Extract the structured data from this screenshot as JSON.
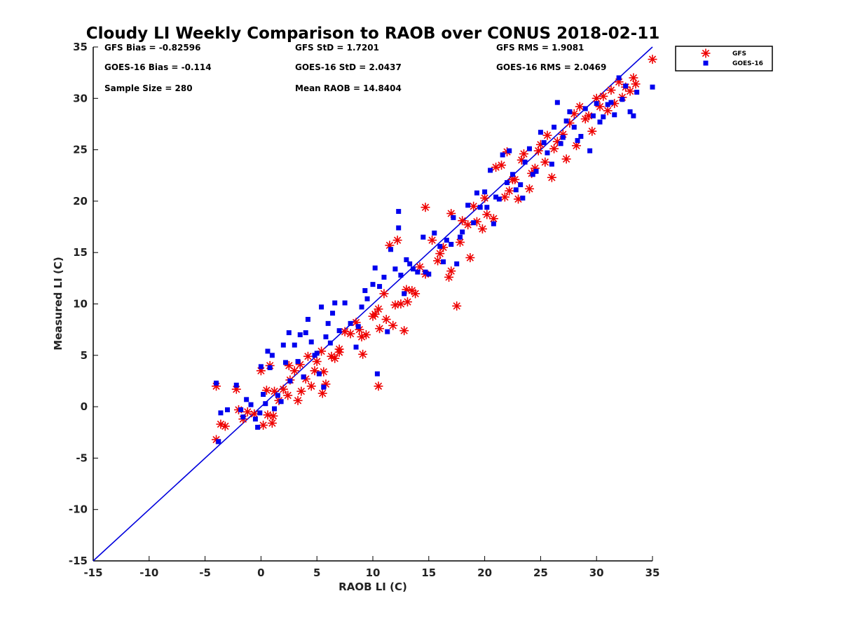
{
  "chart_data": {
    "type": "scatter",
    "title": "Cloudy LI Weekly Comparison to RAOB over CONUS 2018-02-11",
    "xlabel": "RAOB LI (C)",
    "ylabel": "Measured LI (C)",
    "xlim": [
      -15,
      35
    ],
    "ylim": [
      -15,
      35
    ],
    "x_ticks": [
      "-15",
      "-10",
      "-5",
      "0",
      "5",
      "10",
      "15",
      "20",
      "25",
      "30",
      "35"
    ],
    "y_ticks": [
      "-15",
      "-10",
      "-5",
      "0",
      "5",
      "10",
      "15",
      "20",
      "25",
      "30",
      "35"
    ],
    "grid": false,
    "legend_position": "top-right outside",
    "reference_line": {
      "from": [
        -15,
        -15
      ],
      "to": [
        35,
        35
      ],
      "color": "#0000dd"
    },
    "stats": [
      "GFS Bias = -0.82596",
      "GFS StD = 1.7201",
      "GFS RMS = 1.9081",
      "GOES-16 Bias = -0.114",
      "GOES-16 StD = 2.0437",
      "GOES-16 RMS = 2.0469",
      "Sample Size = 280",
      "Mean RAOB = 14.8404"
    ],
    "series": [
      {
        "name": "GFS",
        "marker": "asterisk",
        "color": "#ee0000",
        "points": [
          [
            -4.0,
            2.0
          ],
          [
            -4.0,
            -3.2
          ],
          [
            -3.6,
            -1.7
          ],
          [
            -3.2,
            -1.9
          ],
          [
            -2.2,
            1.7
          ],
          [
            -2.0,
            -0.3
          ],
          [
            -1.6,
            -1.2
          ],
          [
            -1.2,
            -0.5
          ],
          [
            -0.6,
            -0.7
          ],
          [
            0.0,
            3.5
          ],
          [
            0.2,
            -1.8
          ],
          [
            0.5,
            1.6
          ],
          [
            0.6,
            -0.8
          ],
          [
            0.8,
            4.0
          ],
          [
            1.0,
            -1.6
          ],
          [
            1.1,
            -0.9
          ],
          [
            1.2,
            1.5
          ],
          [
            1.6,
            0.6
          ],
          [
            2.0,
            1.7
          ],
          [
            2.4,
            1.1
          ],
          [
            2.5,
            4.0
          ],
          [
            2.6,
            2.6
          ],
          [
            3.0,
            3.5
          ],
          [
            3.3,
            0.6
          ],
          [
            3.5,
            4.1
          ],
          [
            3.6,
            1.5
          ],
          [
            4.0,
            2.7
          ],
          [
            4.2,
            4.9
          ],
          [
            4.5,
            2.0
          ],
          [
            4.8,
            3.5
          ],
          [
            5.0,
            4.4
          ],
          [
            5.4,
            5.4
          ],
          [
            5.5,
            1.3
          ],
          [
            5.6,
            3.4
          ],
          [
            5.8,
            2.2
          ],
          [
            6.3,
            4.9
          ],
          [
            6.6,
            4.7
          ],
          [
            7.0,
            5.6
          ],
          [
            7.0,
            5.3
          ],
          [
            7.5,
            7.3
          ],
          [
            8.0,
            7.1
          ],
          [
            8.5,
            8.2
          ],
          [
            8.8,
            7.5
          ],
          [
            9.0,
            6.8
          ],
          [
            9.1,
            5.1
          ],
          [
            9.4,
            7.0
          ],
          [
            10.0,
            8.8
          ],
          [
            10.2,
            9.0
          ],
          [
            10.5,
            9.5
          ],
          [
            10.5,
            2.0
          ],
          [
            10.6,
            7.6
          ],
          [
            11.0,
            11.0
          ],
          [
            11.2,
            8.5
          ],
          [
            11.5,
            15.7
          ],
          [
            11.8,
            7.9
          ],
          [
            12.0,
            9.9
          ],
          [
            12.2,
            16.2
          ],
          [
            12.5,
            10.0
          ],
          [
            12.8,
            7.4
          ],
          [
            13.0,
            11.4
          ],
          [
            13.1,
            10.2
          ],
          [
            13.5,
            11.3
          ],
          [
            13.8,
            11.0
          ],
          [
            14.2,
            13.6
          ],
          [
            14.7,
            12.9
          ],
          [
            14.7,
            19.4
          ],
          [
            15.3,
            16.2
          ],
          [
            15.8,
            14.2
          ],
          [
            16.0,
            14.9
          ],
          [
            16.3,
            15.5
          ],
          [
            16.8,
            12.6
          ],
          [
            17.0,
            13.2
          ],
          [
            17.0,
            18.8
          ],
          [
            17.5,
            9.8
          ],
          [
            17.8,
            16.0
          ],
          [
            18.0,
            18.1
          ],
          [
            18.5,
            17.7
          ],
          [
            18.7,
            14.5
          ],
          [
            19.0,
            19.5
          ],
          [
            19.3,
            18.0
          ],
          [
            19.8,
            17.3
          ],
          [
            20.0,
            20.3
          ],
          [
            20.2,
            18.7
          ],
          [
            20.8,
            18.3
          ],
          [
            21.0,
            23.3
          ],
          [
            21.5,
            23.5
          ],
          [
            21.8,
            20.4
          ],
          [
            22.0,
            24.8
          ],
          [
            22.2,
            21.0
          ],
          [
            22.5,
            22.1
          ],
          [
            22.7,
            22.1
          ],
          [
            23.0,
            20.2
          ],
          [
            23.3,
            24.0
          ],
          [
            23.5,
            24.6
          ],
          [
            24.0,
            21.2
          ],
          [
            24.2,
            22.7
          ],
          [
            24.5,
            23.2
          ],
          [
            24.8,
            24.9
          ],
          [
            25.0,
            25.5
          ],
          [
            25.4,
            23.8
          ],
          [
            25.6,
            26.4
          ],
          [
            26.0,
            22.3
          ],
          [
            26.2,
            25.1
          ],
          [
            26.5,
            25.8
          ],
          [
            27.0,
            26.5
          ],
          [
            27.3,
            24.1
          ],
          [
            27.6,
            27.6
          ],
          [
            28.0,
            28.5
          ],
          [
            28.2,
            25.4
          ],
          [
            28.5,
            29.2
          ],
          [
            29.0,
            28.0
          ],
          [
            29.3,
            28.3
          ],
          [
            29.6,
            26.8
          ],
          [
            30.0,
            30.0
          ],
          [
            30.3,
            29.2
          ],
          [
            30.6,
            30.2
          ],
          [
            31.0,
            28.8
          ],
          [
            31.3,
            30.8
          ],
          [
            31.6,
            29.5
          ],
          [
            32.0,
            31.6
          ],
          [
            32.3,
            30.1
          ],
          [
            32.6,
            31.1
          ],
          [
            33.0,
            30.7
          ],
          [
            33.3,
            32.0
          ],
          [
            33.5,
            31.4
          ],
          [
            35.0,
            33.8
          ]
        ]
      },
      {
        "name": "GOES-16",
        "marker": "square",
        "color": "#0000ee",
        "points": [
          [
            -4.0,
            2.3
          ],
          [
            -3.8,
            -3.4
          ],
          [
            -3.6,
            -0.6
          ],
          [
            -3.0,
            -0.3
          ],
          [
            -2.2,
            2.1
          ],
          [
            -1.8,
            -0.3
          ],
          [
            -1.6,
            -1.0
          ],
          [
            -1.3,
            0.7
          ],
          [
            -0.9,
            0.2
          ],
          [
            -0.5,
            -1.2
          ],
          [
            -0.3,
            -2.0
          ],
          [
            -0.1,
            -0.6
          ],
          [
            0.0,
            3.9
          ],
          [
            0.2,
            1.2
          ],
          [
            0.4,
            0.3
          ],
          [
            0.6,
            5.4
          ],
          [
            0.8,
            3.8
          ],
          [
            1.0,
            5.0
          ],
          [
            1.2,
            -0.2
          ],
          [
            1.5,
            1.1
          ],
          [
            1.8,
            0.5
          ],
          [
            2.0,
            6.0
          ],
          [
            2.2,
            4.3
          ],
          [
            2.5,
            7.2
          ],
          [
            2.6,
            2.5
          ],
          [
            3.0,
            6.0
          ],
          [
            3.3,
            4.4
          ],
          [
            3.5,
            7.0
          ],
          [
            3.8,
            2.9
          ],
          [
            4.0,
            7.2
          ],
          [
            4.2,
            8.5
          ],
          [
            4.5,
            6.3
          ],
          [
            4.8,
            5.0
          ],
          [
            5.0,
            5.2
          ],
          [
            5.2,
            3.2
          ],
          [
            5.4,
            9.7
          ],
          [
            5.6,
            1.9
          ],
          [
            5.8,
            6.8
          ],
          [
            6.0,
            8.1
          ],
          [
            6.2,
            6.2
          ],
          [
            6.4,
            9.1
          ],
          [
            6.6,
            10.1
          ],
          [
            7.0,
            7.4
          ],
          [
            7.5,
            10.1
          ],
          [
            8.0,
            8.1
          ],
          [
            8.5,
            5.8
          ],
          [
            8.7,
            7.8
          ],
          [
            9.0,
            9.7
          ],
          [
            9.3,
            11.3
          ],
          [
            9.5,
            10.5
          ],
          [
            10.0,
            11.9
          ],
          [
            10.2,
            13.5
          ],
          [
            10.4,
            3.2
          ],
          [
            10.6,
            11.7
          ],
          [
            11.0,
            12.6
          ],
          [
            11.3,
            7.3
          ],
          [
            11.6,
            15.3
          ],
          [
            12.0,
            13.4
          ],
          [
            12.3,
            19.0
          ],
          [
            12.3,
            17.4
          ],
          [
            12.5,
            12.8
          ],
          [
            12.8,
            11.0
          ],
          [
            13.0,
            14.3
          ],
          [
            13.3,
            13.9
          ],
          [
            13.6,
            13.4
          ],
          [
            14.0,
            13.1
          ],
          [
            14.5,
            16.5
          ],
          [
            14.7,
            13.1
          ],
          [
            15.0,
            12.9
          ],
          [
            15.5,
            16.9
          ],
          [
            16.0,
            15.6
          ],
          [
            16.3,
            14.1
          ],
          [
            16.6,
            16.2
          ],
          [
            17.0,
            15.8
          ],
          [
            17.2,
            18.4
          ],
          [
            17.5,
            13.9
          ],
          [
            17.8,
            16.5
          ],
          [
            18.0,
            17.0
          ],
          [
            18.5,
            19.6
          ],
          [
            19.0,
            17.9
          ],
          [
            19.3,
            20.8
          ],
          [
            19.6,
            19.4
          ],
          [
            20.0,
            20.9
          ],
          [
            20.2,
            19.4
          ],
          [
            20.5,
            23.0
          ],
          [
            20.8,
            17.8
          ],
          [
            21.0,
            20.4
          ],
          [
            21.3,
            20.2
          ],
          [
            21.6,
            24.5
          ],
          [
            22.0,
            21.8
          ],
          [
            22.2,
            24.9
          ],
          [
            22.5,
            22.6
          ],
          [
            22.8,
            21.1
          ],
          [
            23.2,
            21.6
          ],
          [
            23.4,
            20.3
          ],
          [
            23.6,
            23.8
          ],
          [
            24.0,
            25.1
          ],
          [
            24.3,
            22.6
          ],
          [
            24.6,
            22.9
          ],
          [
            25.0,
            26.7
          ],
          [
            25.3,
            25.7
          ],
          [
            25.6,
            24.7
          ],
          [
            26.0,
            23.6
          ],
          [
            26.2,
            27.2
          ],
          [
            26.5,
            29.6
          ],
          [
            26.8,
            25.6
          ],
          [
            27.0,
            26.2
          ],
          [
            27.3,
            27.8
          ],
          [
            27.6,
            28.7
          ],
          [
            28.0,
            27.2
          ],
          [
            28.3,
            25.9
          ],
          [
            28.6,
            26.3
          ],
          [
            29.0,
            29.0
          ],
          [
            29.4,
            24.9
          ],
          [
            29.7,
            28.3
          ],
          [
            30.0,
            29.5
          ],
          [
            30.3,
            27.7
          ],
          [
            30.6,
            28.2
          ],
          [
            31.0,
            29.4
          ],
          [
            31.3,
            29.6
          ],
          [
            31.6,
            28.4
          ],
          [
            32.0,
            32.0
          ],
          [
            32.3,
            29.9
          ],
          [
            32.6,
            31.2
          ],
          [
            33.0,
            28.7
          ],
          [
            33.3,
            28.3
          ],
          [
            33.6,
            30.6
          ],
          [
            35.0,
            31.1
          ]
        ]
      }
    ]
  }
}
